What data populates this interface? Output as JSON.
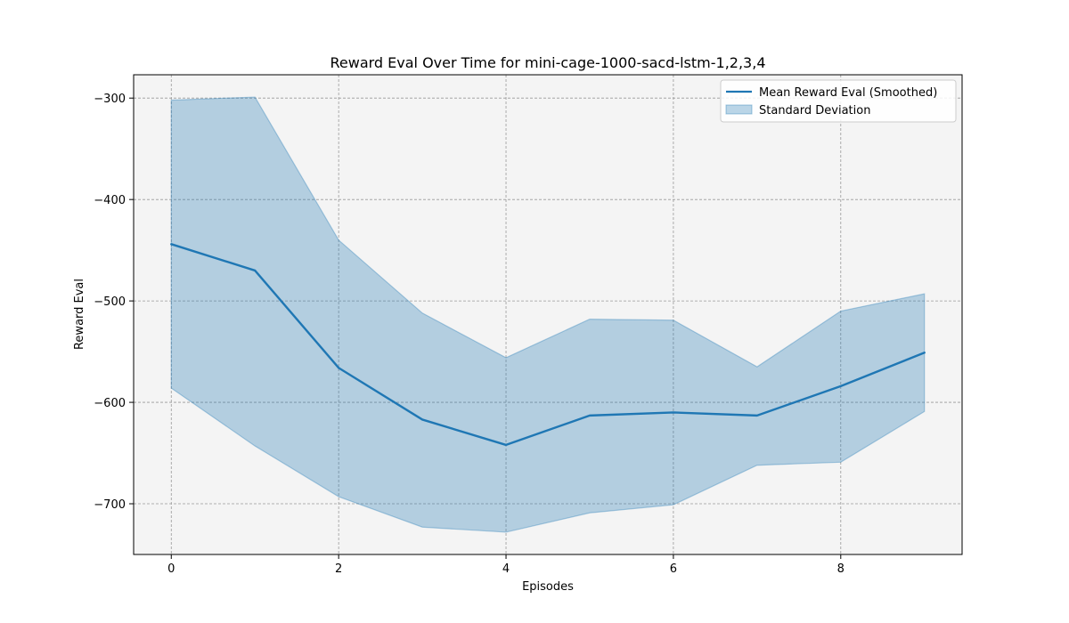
{
  "chart_data": {
    "type": "line",
    "title": "Reward Eval Over Time for mini-cage-1000-sacd-lstm-1,2,3,4",
    "xlabel": "Episodes",
    "ylabel": "Reward Eval",
    "x": [
      0,
      1,
      2,
      3,
      4,
      5,
      6,
      7,
      8,
      9
    ],
    "xlim": [
      -0.45,
      9.45
    ],
    "ylim": [
      -750,
      -277
    ],
    "xticks": [
      0,
      2,
      4,
      6,
      8
    ],
    "yticks": [
      -300,
      -400,
      -500,
      -600,
      -700
    ],
    "ytick_labels": [
      "−300",
      "−400",
      "−500",
      "−600",
      "−700"
    ],
    "grid": true,
    "legend_position": "top-right",
    "series": [
      {
        "name": "Mean Reward Eval (Smoothed)",
        "kind": "line",
        "color": "#1f77b4",
        "values": [
          -444,
          -470,
          -566,
          -617,
          -642,
          -613,
          -610,
          -613,
          -584,
          -551
        ]
      },
      {
        "name": "Standard Deviation",
        "kind": "band",
        "color": "#1f77b4",
        "upper": [
          -302,
          -299,
          -440,
          -512,
          -556,
          -518,
          -519,
          -565,
          -510,
          -493
        ],
        "lower": [
          -586,
          -643,
          -693,
          -723,
          -728,
          -709,
          -701,
          -662,
          -659,
          -609
        ]
      }
    ]
  }
}
